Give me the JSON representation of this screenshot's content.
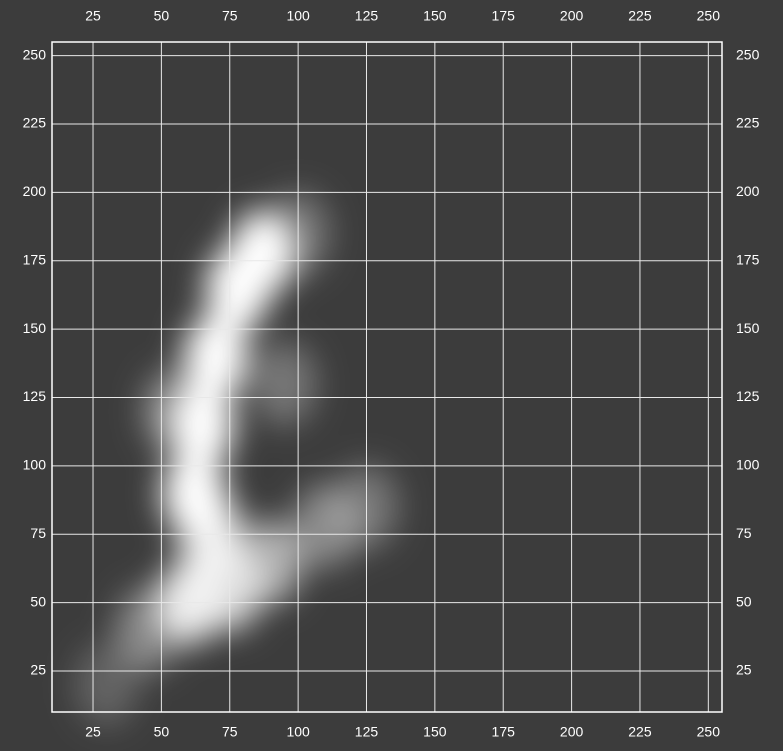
{
  "chart_data": {
    "type": "density",
    "x": [
      62,
      65,
      70,
      78,
      87,
      68,
      60,
      75,
      90,
      110,
      125,
      45,
      30,
      100,
      95,
      55
    ],
    "y": [
      90,
      115,
      140,
      165,
      178,
      75,
      50,
      55,
      65,
      78,
      85,
      40,
      20,
      185,
      130,
      120
    ],
    "values": [
      1,
      1,
      1,
      1,
      1,
      0.9,
      0.9,
      0.8,
      0.6,
      0.4,
      0.3,
      0.4,
      0.2,
      0.3,
      0.3,
      0.4
    ],
    "color": "#ffffff",
    "background": "#3c3c3c",
    "xlim": [
      10,
      255
    ],
    "ylim": [
      10,
      255
    ],
    "xticks": [
      25,
      50,
      75,
      100,
      125,
      150,
      175,
      200,
      225,
      250
    ],
    "yticks": [
      25,
      50,
      75,
      100,
      125,
      150,
      175,
      200,
      225,
      250
    ],
    "grid": true
  }
}
